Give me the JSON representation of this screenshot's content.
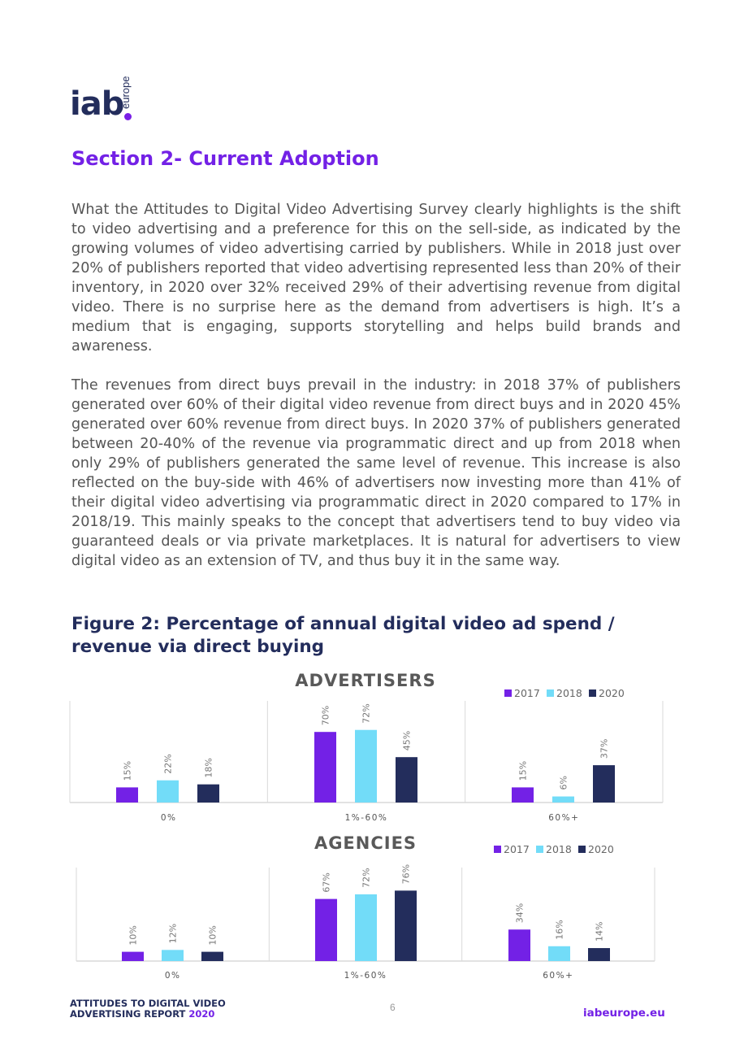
{
  "logo": {
    "main": "iab",
    "sub": "europe"
  },
  "section_title": "Section 2- Current Adoption",
  "paragraphs": [
    "What the Attitudes to Digital Video Advertising Survey clearly highlights is the shift to video advertising and a preference for this on the sell-side, as indicated by the growing volumes of video advertising carried by publishers. While in 2018 just over 20% of publishers reported that video advertising represented less than 20% of their inventory, in 2020 over 32% received 29% of their advertising revenue from digital video. There is no surprise here as the demand from advertisers is high. It’s a medium that is engaging, supports storytelling and helps build brands and awareness.",
    "The revenues from direct buys prevail in the industry: in 2018 37% of publishers generated over 60% of their digital video revenue from direct buys and in 2020 45% generated over 60% revenue from direct buys. In 2020 37% of publishers generated between 20-40% of the revenue via programmatic direct and up from 2018 when only 29% of publishers generated the same level of revenue. This increase is also reflected on the buy-side with 46% of advertisers now investing more than 41% of their digital video advertising via programmatic direct in 2020 compared to 17% in 2018/19. This mainly speaks to the concept that advertisers tend to buy video via guaranteed deals or via private marketplaces. It is natural for advertisers to view digital video as an extension of TV, and thus buy it in the same way."
  ],
  "figure_title": "Figure 2: Percentage of annual digital video ad spend / revenue via direct buying",
  "colors": {
    "s2017": "#7321e6",
    "s2018": "#72dcf8",
    "s2020": "#232d5c"
  },
  "chart_data": [
    {
      "type": "bar",
      "title": "ADVERTISERS",
      "categories": [
        "0%",
        "1%-60%",
        "60%+"
      ],
      "series": [
        {
          "name": "2017",
          "values": [
            15,
            70,
            15
          ]
        },
        {
          "name": "2018",
          "values": [
            22,
            72,
            6
          ]
        },
        {
          "name": "2020",
          "values": [
            18,
            45,
            37
          ]
        }
      ],
      "value_suffix": "%",
      "legend": "top-right",
      "ylim": [
        0,
        100
      ]
    },
    {
      "type": "bar",
      "title": "AGENCIES",
      "categories": [
        "0%",
        "1%-60%",
        "60%+"
      ],
      "series": [
        {
          "name": "2017",
          "values": [
            10,
            67,
            34
          ]
        },
        {
          "name": "2018",
          "values": [
            12,
            72,
            16
          ]
        },
        {
          "name": "2020",
          "values": [
            10,
            76,
            14
          ]
        }
      ],
      "value_suffix": "%",
      "legend": "top-right",
      "ylim": [
        0,
        100
      ]
    }
  ],
  "footer": {
    "report_line1": "ATTITUDES TO DIGITAL VIDEO",
    "report_line2": "ADVERTISING REPORT",
    "report_year": "2020",
    "page_number": "6",
    "website": "iabeurope.eu"
  }
}
